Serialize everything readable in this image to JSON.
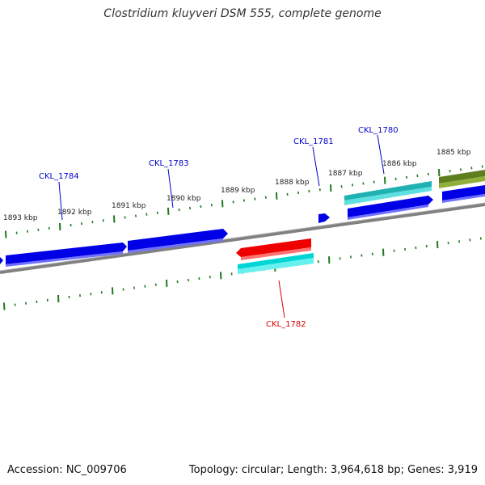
{
  "title": "Clostridium kluyveri DSM 555, complete genome",
  "footer": {
    "accession": "Accession: NC_009706",
    "summary": "Topology: circular; Length: 3,964,618 bp; Genes: 3,919"
  },
  "colors": {
    "backbone": "#808080",
    "ticks": "#1e7a1e",
    "blue_gene": "#0000e6",
    "cyan_gene": "#00e5e5",
    "teal_gene": "#1fc4c4",
    "red_gene": "#ee0000",
    "olive_gene": "#6b8e23",
    "label_blue": "#0000cc",
    "label_red": "#dd0000"
  },
  "kbp_labels": [
    "1885 kbp",
    "1886 kbp",
    "1887 kbp",
    "1888 kbp",
    "1889 kbp",
    "1890 kbp",
    "1891 kbp",
    "1892 kbp",
    "1893 kbp"
  ],
  "gene_labels": [
    {
      "id": "CKL_1780",
      "strand": "forward"
    },
    {
      "id": "CKL_1781",
      "strand": "forward"
    },
    {
      "id": "CKL_1782",
      "strand": "reverse"
    },
    {
      "id": "CKL_1783",
      "strand": "forward"
    },
    {
      "id": "CKL_1784",
      "strand": "forward"
    }
  ]
}
